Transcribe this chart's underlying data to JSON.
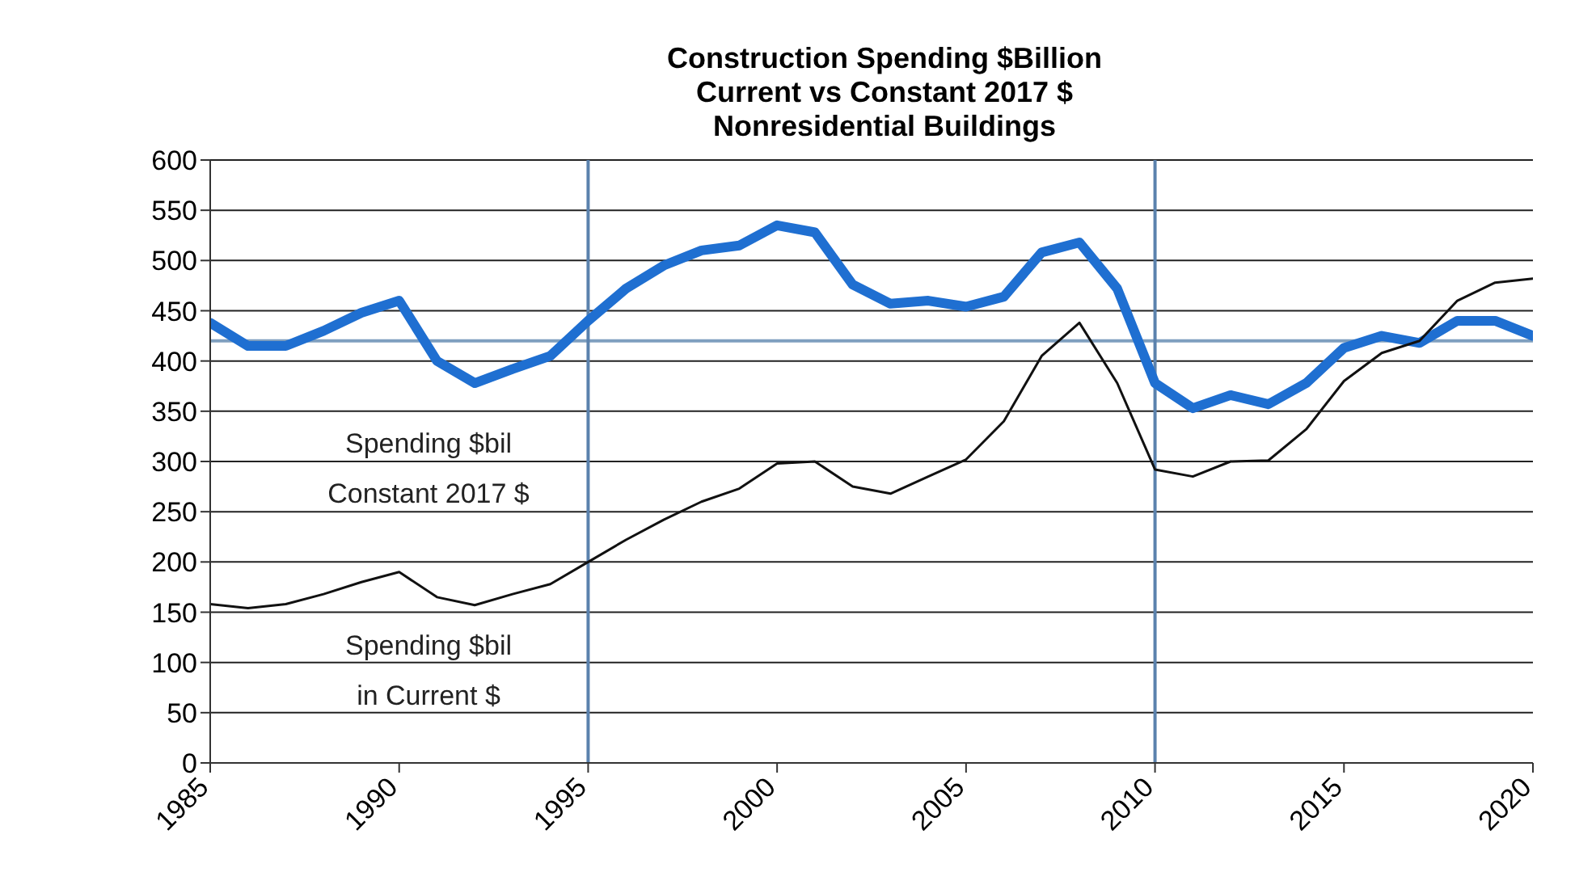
{
  "chart_data": {
    "type": "line",
    "title": "Construction Spending  $Billion\nCurrent vs Constant 2017 $\nNonresidential Buildings",
    "x": [
      1985,
      1986,
      1987,
      1988,
      1989,
      1990,
      1991,
      1992,
      1993,
      1994,
      1995,
      1996,
      1997,
      1998,
      1999,
      2000,
      2001,
      2002,
      2003,
      2004,
      2005,
      2006,
      2007,
      2008,
      2009,
      2010,
      2011,
      2012,
      2013,
      2014,
      2015,
      2016,
      2017,
      2018,
      2019,
      2020
    ],
    "series": [
      {
        "name": "Spending $bil\nConstant 2017 $",
        "color": "#1f6fd1",
        "values": [
          438,
          415,
          415,
          430,
          448,
          460,
          400,
          378,
          392,
          405,
          440,
          472,
          495,
          510,
          515,
          535,
          528,
          476,
          457,
          460,
          454,
          464,
          508,
          518,
          472,
          378,
          353,
          366,
          357,
          378,
          413,
          425,
          418,
          440,
          440,
          425
        ]
      },
      {
        "name": "Spending $bil\nin Current $",
        "color": "#111111",
        "values": [
          158,
          154,
          158,
          168,
          180,
          190,
          165,
          157,
          168,
          178,
          200,
          222,
          242,
          260,
          273,
          298,
          300,
          275,
          268,
          285,
          302,
          340,
          405,
          438,
          378,
          292,
          285,
          300,
          301,
          332,
          380,
          408,
          420,
          460,
          478,
          482
        ]
      }
    ],
    "xlim": [
      1985,
      2020
    ],
    "xticks": [
      1985,
      1990,
      1995,
      2000,
      2005,
      2010,
      2015,
      2020
    ],
    "ylim": [
      0,
      600
    ],
    "yticks": [
      0,
      50,
      100,
      150,
      200,
      250,
      300,
      350,
      400,
      450,
      500,
      550,
      600
    ],
    "grid": "y",
    "legend": false,
    "marker": "none",
    "line_style": "solid",
    "ref_lines": [
      {
        "axis": "y",
        "value": 420,
        "color": "#7f9fbf"
      },
      {
        "axis": "x",
        "value": 1995,
        "color": "#5b82ad"
      },
      {
        "axis": "x",
        "value": 2010,
        "color": "#5b82ad"
      }
    ]
  }
}
